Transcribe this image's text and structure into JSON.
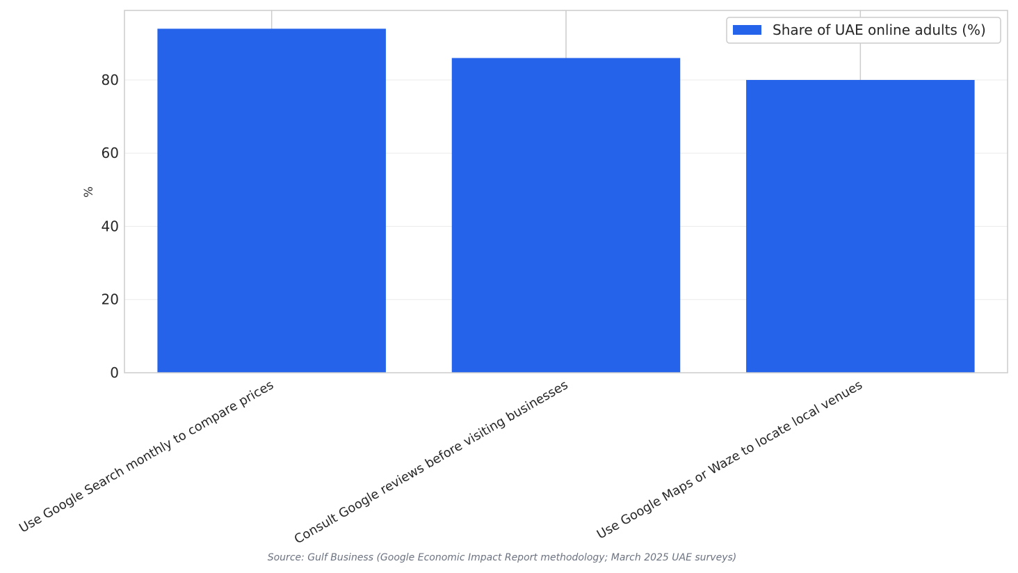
{
  "chart_data": {
    "type": "bar",
    "categories": [
      "Use Google Search monthly to compare prices",
      "Consult Google reviews before visiting businesses",
      "Use Google Maps or Waze to locate local venues"
    ],
    "series": [
      {
        "name": "Share of UAE online adults (%)",
        "values": [
          94,
          86,
          80
        ],
        "color": "#2563eb"
      }
    ],
    "title": "",
    "xlabel": "",
    "ylabel": "%",
    "ylim": [
      0,
      99
    ],
    "yticks": [
      0,
      20,
      40,
      60,
      80
    ],
    "grid": true,
    "legend_position": "top-right",
    "source": "Source: Gulf Business (Google Economic Impact Report methodology; March 2025 UAE surveys)"
  }
}
